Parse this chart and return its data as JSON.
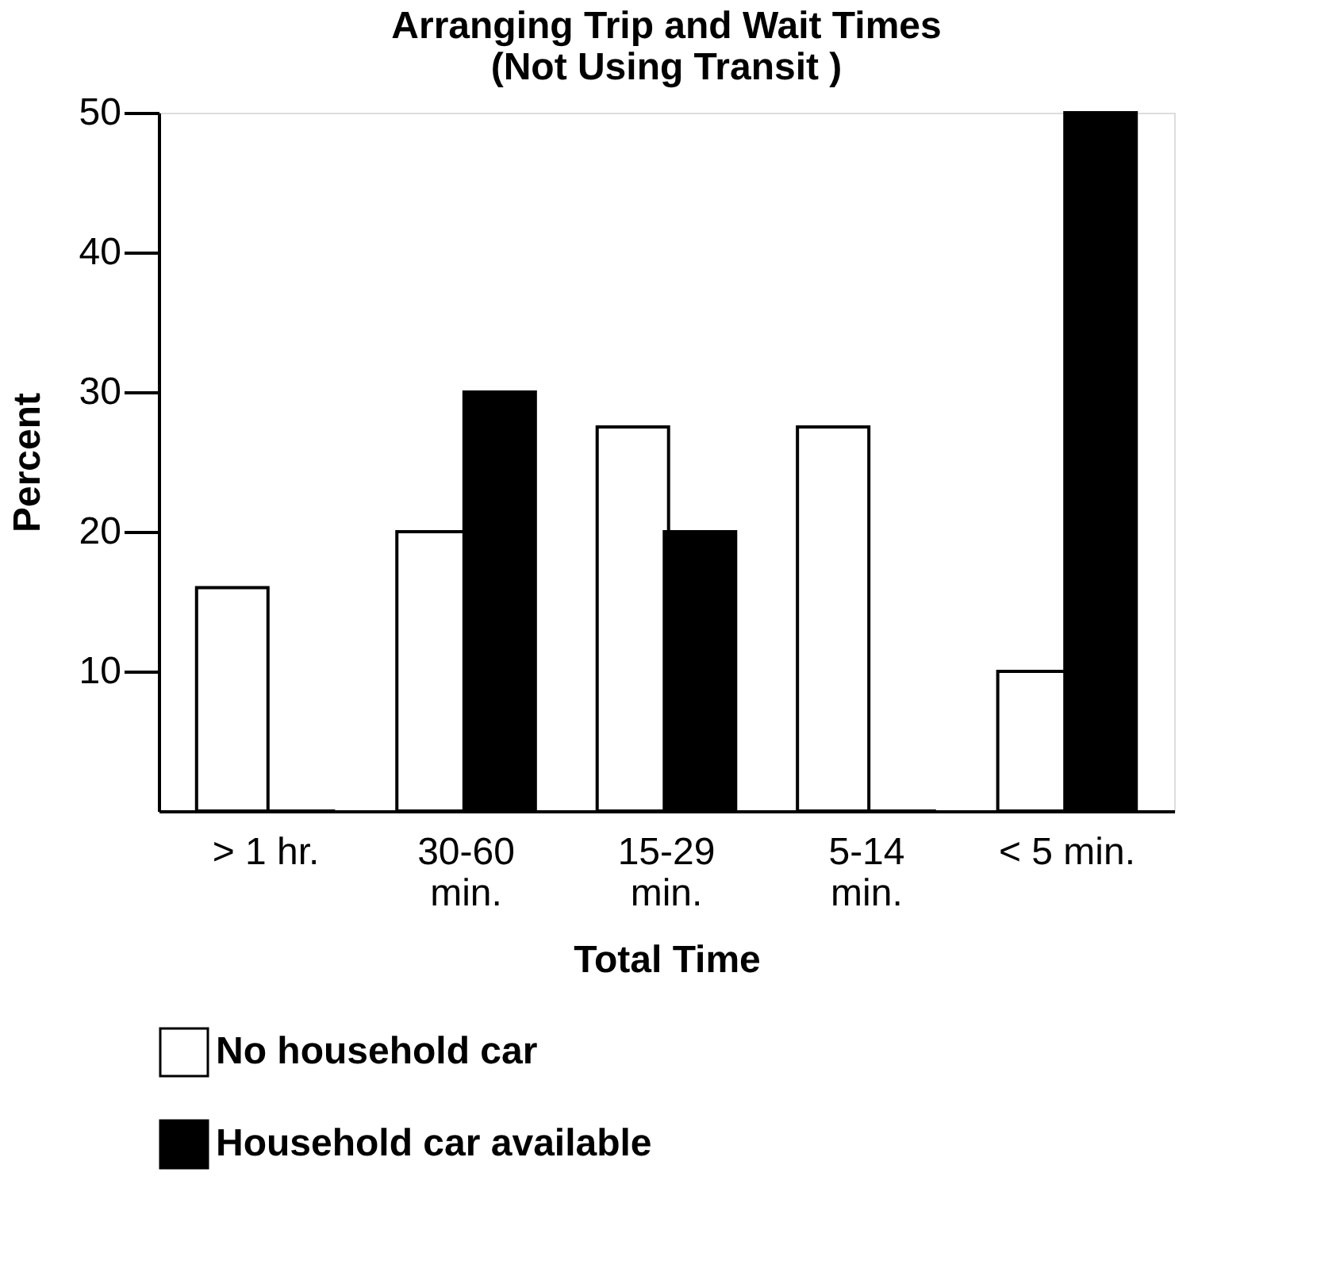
{
  "chart_data": {
    "type": "bar",
    "title": "Arranging Trip and Wait Times\n(Not Using Transit )",
    "xlabel": "Total Time",
    "ylabel": "Percent",
    "categories": [
      "> 1 hr.",
      "30-60\nmin.",
      "15-29\nmin.",
      "5-14\nmin.",
      "< 5 min."
    ],
    "series": [
      {
        "name": "No household car",
        "color": "#ffffff",
        "values": [
          16,
          20,
          27.5,
          27.5,
          10
        ]
      },
      {
        "name": "Household car available",
        "color": "#000000",
        "values": [
          0,
          30,
          20,
          0,
          50
        ]
      }
    ],
    "ylim": [
      0,
      50
    ],
    "yticks": [
      10,
      20,
      30,
      40,
      50
    ],
    "grid": false,
    "legend": "bottom left"
  }
}
